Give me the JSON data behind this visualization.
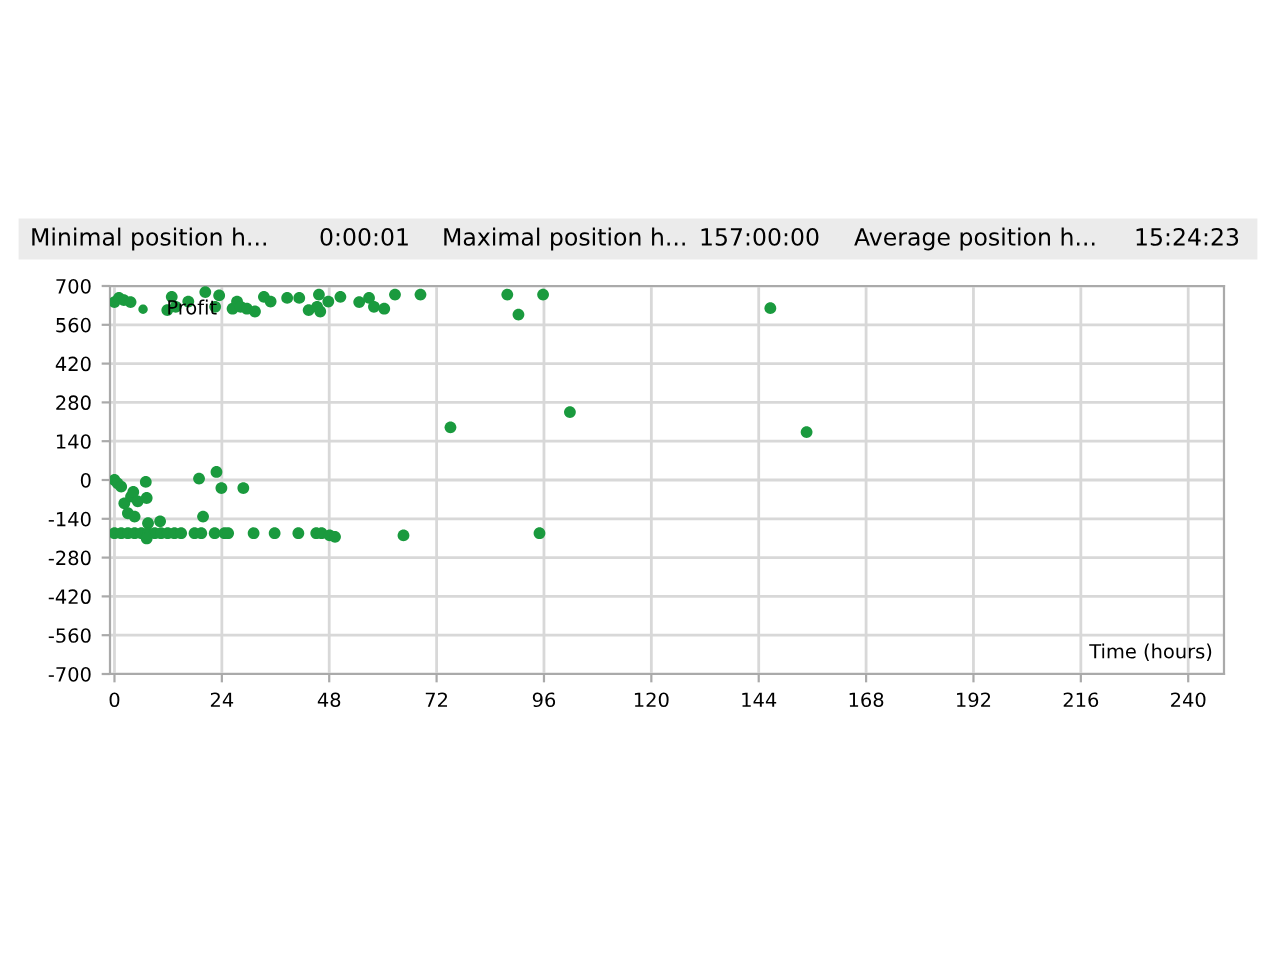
{
  "chart_data": {
    "type": "scatter",
    "xlabel": "Time (hours)",
    "annotations": [
      "Minimal position h...",
      "0:00:01",
      "Maximal position h...",
      "157:00:00",
      "Average position h...",
      "15:24:23"
    ],
    "series": [
      {
        "name": "Profit",
        "color": "#1a9a3e",
        "x": [
          0,
          1.0,
          2.1,
          3.6,
          11.8,
          12.8,
          13.7,
          16.5,
          20.3,
          22.5,
          23.4,
          26.4,
          27.4,
          28.2,
          29.6,
          31.4,
          33.4,
          34.9,
          38.6,
          41.3,
          43.4,
          45.3,
          45.7,
          46,
          47.8,
          50.5,
          54.7,
          56.9,
          58,
          60.3,
          62.7,
          68.4,
          75.1,
          87.8,
          90.3,
          95.8,
          101.8,
          146.6,
          154.7,
          0,
          0.7,
          1.5,
          2.2,
          3.7,
          4.2,
          3.0,
          4.5,
          5.2,
          7.0,
          7.2,
          7.5,
          10.2,
          18.9,
          19.8,
          22.8,
          23.9,
          28.8,
          0,
          1.5,
          3.0,
          4.5,
          6.0,
          7.5,
          9.0,
          10.4,
          11.9,
          13.4,
          14.9,
          17.9,
          19.4,
          22.4,
          24.6,
          25.4,
          31.1,
          35.8,
          41.1,
          45.1,
          46.3,
          48.1,
          49.3,
          64.6,
          95.0,
          7.2
        ],
        "values": [
          642,
          657,
          649,
          642,
          613,
          661,
          625,
          644,
          678,
          625,
          666,
          618,
          644,
          625,
          618,
          608,
          661,
          644,
          657,
          657,
          613,
          625,
          669,
          608,
          644,
          661,
          642,
          657,
          625,
          618,
          669,
          669,
          190,
          669,
          597,
          669,
          245,
          620,
          173,
          0,
          -12,
          -24,
          -84,
          -60,
          -43,
          -120,
          -132,
          -77,
          -7,
          -65,
          -156,
          -149,
          5,
          -132,
          29,
          -29,
          -29,
          -192,
          -192,
          -192,
          -192,
          -192,
          -192,
          -192,
          -192,
          -192,
          -192,
          -192,
          -192,
          -192,
          -192,
          -192,
          -192,
          -192,
          -192,
          -192,
          -192,
          -192,
          -200,
          -205,
          -200,
          -192,
          -211
        ]
      }
    ],
    "xlim": [
      -1,
      248
    ],
    "ylim": [
      -700,
      700
    ],
    "xticks": [
      0,
      24,
      48,
      72,
      96,
      120,
      144,
      168,
      192,
      216,
      240
    ],
    "yticks": [
      -700,
      -560,
      -420,
      -280,
      -140,
      0,
      140,
      280,
      420,
      560,
      700
    ],
    "grid": true,
    "legend": "top left",
    "marker": "circle"
  }
}
